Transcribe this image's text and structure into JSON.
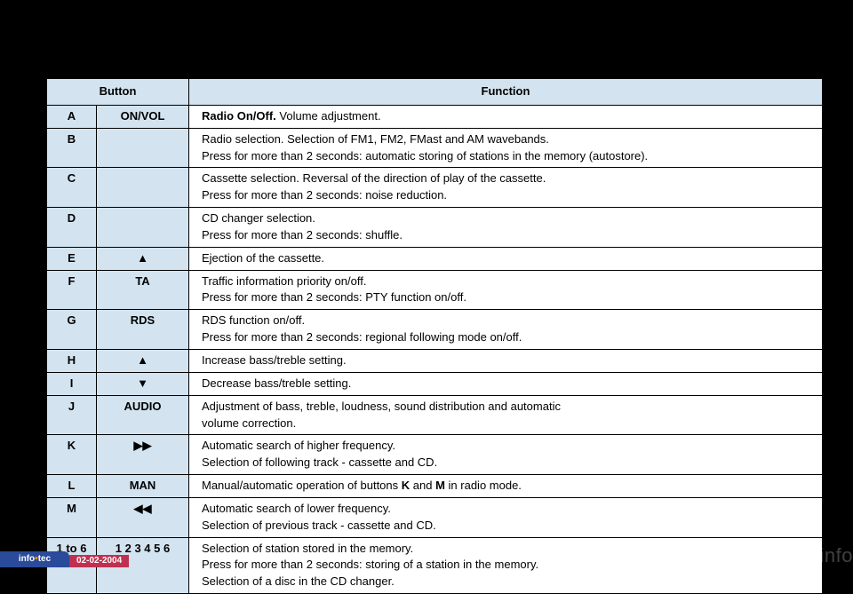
{
  "header": {
    "button_col": "Button",
    "function_col": "Function"
  },
  "rows": [
    {
      "letter": "A",
      "label": "ON/VOL",
      "func_html": "<span class='bold'>Radio On/Off.</span> Volume adjustment."
    },
    {
      "letter": "B",
      "label": "",
      "func_html": "Radio selection. Selection of FM1, FM2, FMast and AM wavebands.<br>Press for more than 2 seconds: automatic storing of stations in the memory (autostore)."
    },
    {
      "letter": "C",
      "label": "",
      "func_html": "Cassette selection. Reversal of the direction of play of the cassette.<br>Press for more than 2 seconds: noise reduction."
    },
    {
      "letter": "D",
      "label": "",
      "func_html": "CD changer selection.<br>Press for more than 2 seconds: shuffle."
    },
    {
      "letter": "E",
      "label_glyph": "eject",
      "func_html": "Ejection of the cassette."
    },
    {
      "letter": "F",
      "label": "TA",
      "func_html": "Traffic information priority on/off.<br>Press for more than 2 seconds: PTY function on/off."
    },
    {
      "letter": "G",
      "label": "RDS",
      "func_html": "RDS function on/off.<br>Press for more than 2 seconds: regional following mode on/off."
    },
    {
      "letter": "H",
      "label_glyph": "up",
      "func_html": "Increase bass/treble setting."
    },
    {
      "letter": "I",
      "label_glyph": "down",
      "func_html": "Decrease bass/treble setting."
    },
    {
      "letter": "J",
      "label": "AUDIO",
      "func_html": "Adjustment of bass, treble, loudness, sound distribution and automatic<br>volume correction."
    },
    {
      "letter": "K",
      "label_glyph": "fwd",
      "func_html": "Automatic search of higher frequency.<br>Selection of following track - cassette and CD."
    },
    {
      "letter": "L",
      "label": "MAN",
      "func_html": "Manual/automatic operation of buttons <span class='bold'>K</span> and <span class='bold'>M</span> in radio mode."
    },
    {
      "letter": "M",
      "label_glyph": "rev",
      "func_html": "Automatic search of lower frequency.<br>Selection of previous track - cassette and CD."
    },
    {
      "letter": "1 to 6",
      "label": "1 2 3 4 5 6",
      "func_html": "Selection of station stored in the memory.<br>Press for more than 2 seconds: storing of a station in the memory.<br>Selection of a disc in the CD changer."
    }
  ],
  "glyphs": {
    "eject": "▲",
    "up": "▲",
    "down": "▼",
    "fwd": "▶▶",
    "rev": "◀◀"
  },
  "footer": {
    "brand_pre": "info",
    "brand_post": "tec",
    "date": "02-02-2004",
    "watermark": "carmanualsonline.info"
  },
  "colors": {
    "header_bg": "#d3e3f0",
    "cell_bg": "#ffffff",
    "border": "#000000",
    "page_bg": "#000000",
    "infotec_bg": "#2a4a9a",
    "date_bg": "#c03050",
    "dot": "#ff9900"
  }
}
